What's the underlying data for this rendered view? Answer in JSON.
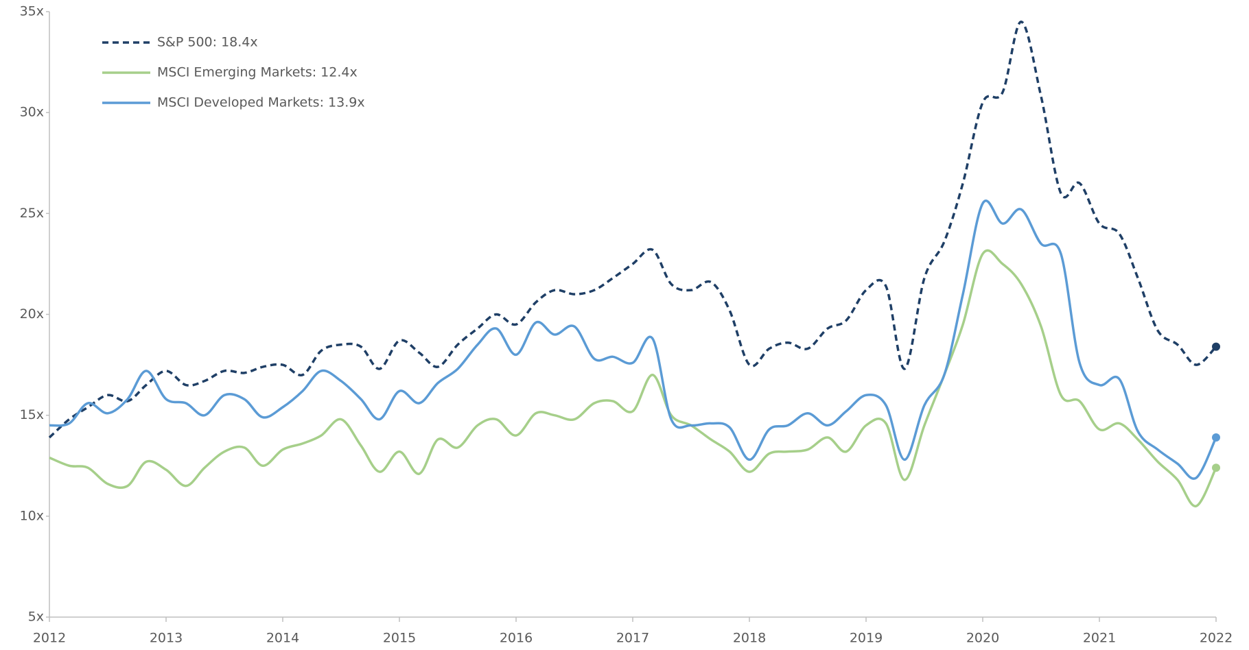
{
  "chart_data": {
    "type": "line",
    "x": [
      2012,
      2012.17,
      2012.33,
      2012.5,
      2012.67,
      2012.83,
      2013,
      2013.17,
      2013.33,
      2013.5,
      2013.67,
      2013.83,
      2014,
      2014.17,
      2014.33,
      2014.5,
      2014.67,
      2014.83,
      2015,
      2015.17,
      2015.33,
      2015.5,
      2015.67,
      2015.83,
      2016,
      2016.17,
      2016.33,
      2016.5,
      2016.67,
      2016.83,
      2017,
      2017.17,
      2017.33,
      2017.5,
      2017.67,
      2017.83,
      2018,
      2018.17,
      2018.33,
      2018.5,
      2018.67,
      2018.83,
      2019,
      2019.17,
      2019.33,
      2019.5,
      2019.67,
      2019.83,
      2020,
      2020.17,
      2020.33,
      2020.5,
      2020.67,
      2020.83,
      2021,
      2021.17,
      2021.33,
      2021.5,
      2021.67,
      2021.83,
      2022
    ],
    "series": [
      {
        "name": "S&P 500: 18.4x",
        "color": "#1f3f66",
        "dashed": true,
        "end_marker": true,
        "values": [
          13.9,
          14.8,
          15.4,
          16.0,
          15.7,
          16.5,
          17.2,
          16.5,
          16.7,
          17.2,
          17.1,
          17.4,
          17.5,
          17.0,
          18.2,
          18.5,
          18.4,
          17.3,
          18.7,
          18.1,
          17.4,
          18.5,
          19.3,
          20.0,
          19.5,
          20.6,
          21.2,
          21.0,
          21.2,
          21.8,
          22.5,
          23.2,
          21.5,
          21.2,
          21.6,
          20.2,
          17.5,
          18.3,
          18.6,
          18.3,
          19.3,
          19.7,
          21.2,
          21.4,
          17.3,
          21.8,
          23.6,
          26.5,
          30.5,
          31.0,
          34.5,
          30.8,
          26.0,
          26.5,
          24.5,
          24.0,
          21.8,
          19.2,
          18.5,
          17.5,
          18.4
        ]
      },
      {
        "name": "MSCI Emerging Markets: 12.4x",
        "color": "#a6cf8a",
        "dashed": false,
        "end_marker": true,
        "values": [
          12.9,
          12.5,
          12.4,
          11.6,
          11.5,
          12.7,
          12.3,
          11.5,
          12.4,
          13.2,
          13.4,
          12.5,
          13.3,
          13.6,
          14.0,
          14.8,
          13.5,
          12.2,
          13.2,
          12.1,
          13.8,
          13.4,
          14.5,
          14.8,
          14.0,
          15.1,
          15.0,
          14.8,
          15.6,
          15.7,
          15.2,
          17.0,
          15.0,
          14.5,
          13.8,
          13.2,
          12.2,
          13.1,
          13.2,
          13.3,
          13.9,
          13.2,
          14.5,
          14.6,
          11.8,
          14.5,
          17.0,
          19.5,
          23.0,
          22.5,
          21.5,
          19.4,
          16.0,
          15.7,
          14.3,
          14.6,
          13.8,
          12.7,
          11.8,
          10.5,
          12.4
        ]
      },
      {
        "name": "MSCI Developed Markets: 13.9x",
        "color": "#5b9bd5",
        "dashed": false,
        "end_marker": true,
        "values": [
          14.5,
          14.6,
          15.6,
          15.1,
          15.8,
          17.2,
          15.8,
          15.6,
          15.0,
          16.0,
          15.8,
          14.9,
          15.4,
          16.2,
          17.2,
          16.7,
          15.8,
          14.8,
          16.2,
          15.6,
          16.6,
          17.3,
          18.5,
          19.3,
          18.0,
          19.6,
          19.0,
          19.4,
          17.8,
          17.9,
          17.6,
          18.8,
          14.8,
          14.5,
          14.6,
          14.4,
          12.8,
          14.3,
          14.5,
          15.1,
          14.5,
          15.2,
          16.0,
          15.5,
          12.8,
          15.5,
          17.0,
          21.0,
          25.5,
          24.5,
          25.2,
          23.5,
          23.0,
          17.6,
          16.5,
          16.8,
          14.2,
          13.3,
          12.6,
          11.9,
          13.9
        ]
      }
    ],
    "xlim": [
      2012,
      2022
    ],
    "xticks": [
      2012,
      2013,
      2014,
      2015,
      2016,
      2017,
      2018,
      2019,
      2020,
      2021,
      2022
    ],
    "ylim": [
      5,
      35
    ],
    "yticks": [
      {
        "value": 5,
        "label": "5x"
      },
      {
        "value": 10,
        "label": "10x"
      },
      {
        "value": 15,
        "label": "15x"
      },
      {
        "value": 20,
        "label": "20x"
      },
      {
        "value": 25,
        "label": "25x"
      },
      {
        "value": 30,
        "label": "30x"
      },
      {
        "value": 35,
        "label": "35x"
      }
    ],
    "grid": false,
    "legend": "upper left"
  }
}
